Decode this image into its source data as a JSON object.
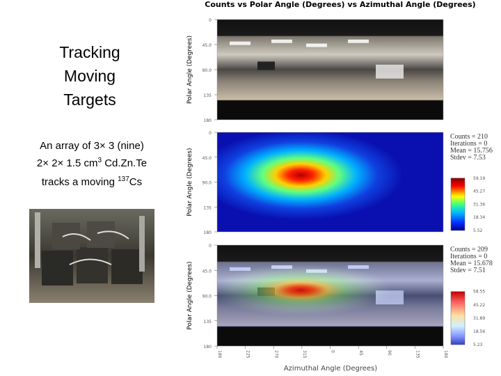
{
  "slide": {
    "title_lines": [
      "Tracking",
      "Moving",
      "Targets"
    ],
    "description": [
      [
        "An array of 3× 3 (nine)"
      ],
      [
        "2× 2× 1.5 cm",
        "3",
        " Cd.Zn.Te"
      ],
      [
        "tracks a moving ",
        "137",
        "Cs"
      ]
    ]
  },
  "figure": {
    "title": "Counts vs Polar Angle (Degrees) vs Azimuthal Angle (Degrees)",
    "y_label": "Polar Angle (Degrees)",
    "x_label": "Azimuthal Angle (Degrees)",
    "y_ticks": [
      "0",
      "45.0",
      "90.0",
      "135",
      "180"
    ],
    "x_ticks": [
      "180",
      "225",
      "270",
      "315",
      "0",
      "45",
      "90",
      "135",
      "180"
    ],
    "panels": [
      {
        "stats": [],
        "colorbar_ticks": []
      },
      {
        "stats": [
          "Counts = 210",
          "Iterations = 0",
          "Mean = 15.756",
          "Stdev = 7.53"
        ],
        "colorbar_ticks": [
          "59.19",
          "45.27",
          "31.36",
          "18.34",
          "5.52"
        ]
      },
      {
        "stats": [
          "Counts = 209",
          "Iterations = 0",
          "Mean = 15.678",
          "Stdev = 7.51"
        ],
        "colorbar_ticks": [
          "58.55",
          "45.22",
          "31.89",
          "18.56",
          "5.23"
        ]
      }
    ]
  }
}
